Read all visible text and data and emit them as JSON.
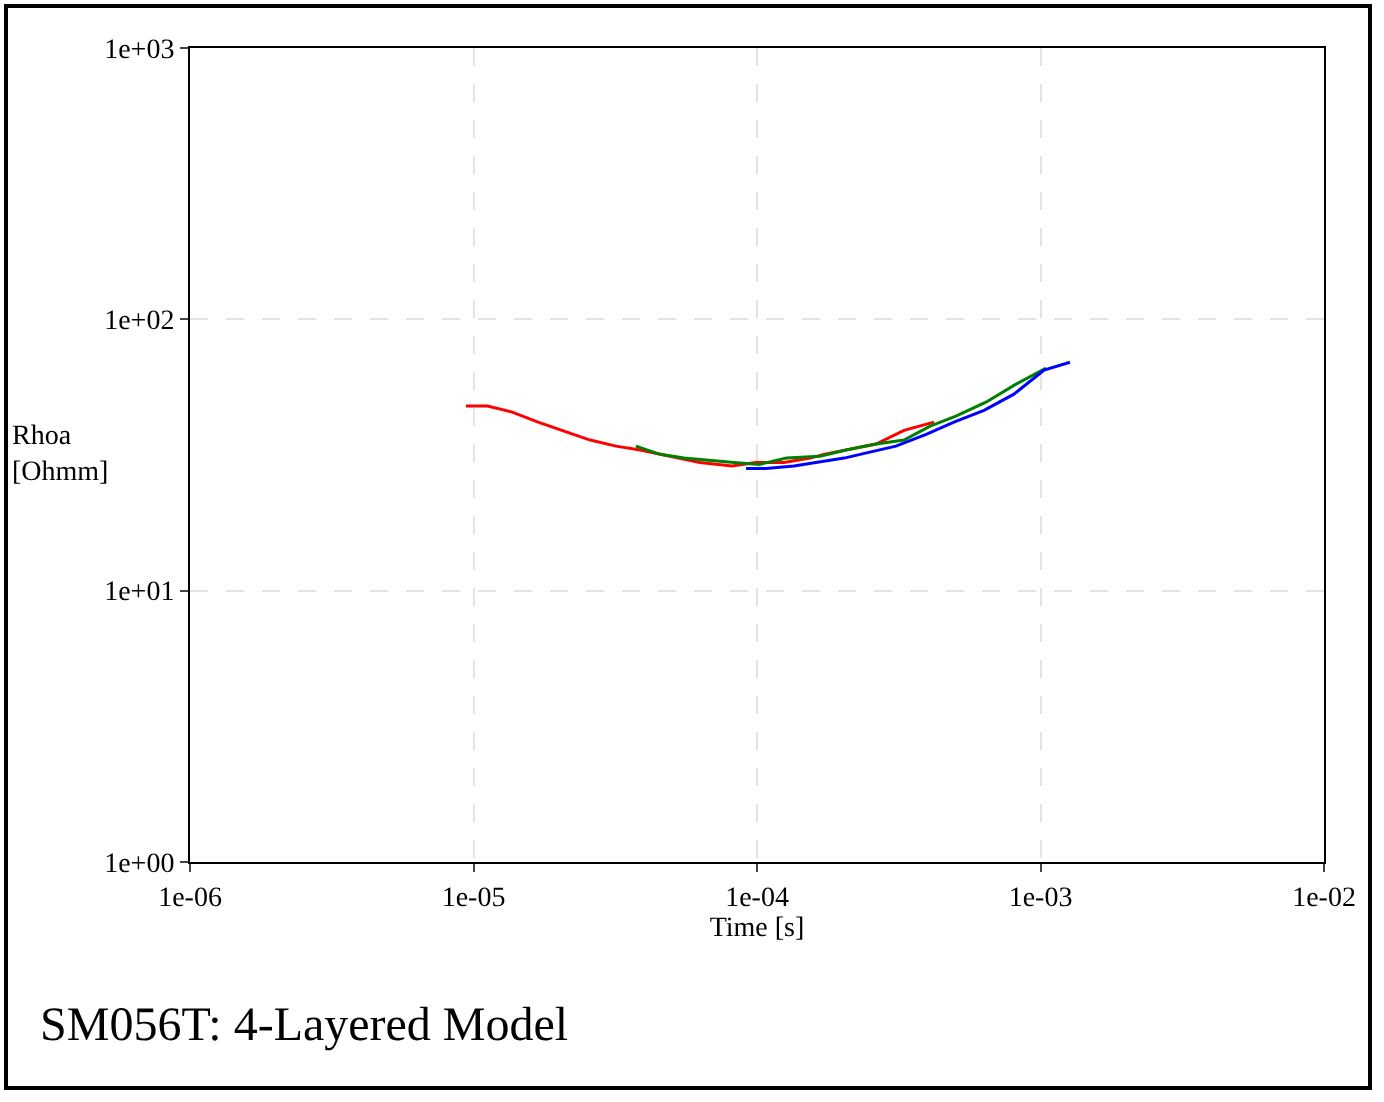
{
  "chart_data": {
    "type": "line",
    "title": "SM056T: 4-Layered Model",
    "xlabel": "Time [s]",
    "ylabel": "Rhoa\n[Ohmm]",
    "log": "xy",
    "grid": true,
    "line_style": "solid",
    "xlim": [
      1e-06,
      0.01
    ],
    "ylim": [
      1,
      1000
    ],
    "xticks": [
      {
        "value": 1e-06,
        "label": "1e-06"
      },
      {
        "value": 1e-05,
        "label": "1e-05"
      },
      {
        "value": 0.0001,
        "label": "1e-04"
      },
      {
        "value": 0.001,
        "label": "1e-03"
      },
      {
        "value": 0.01,
        "label": "1e-02"
      }
    ],
    "yticks": [
      {
        "value": 1,
        "label": "1e+00"
      },
      {
        "value": 10,
        "label": "1e+01"
      },
      {
        "value": 100,
        "label": "1e+02"
      },
      {
        "value": 1000,
        "label": "1e+03"
      }
    ],
    "series": [
      {
        "color": "#ff0000",
        "x": [
          9.4e-06,
          1.12e-05,
          1.37e-05,
          1.69e-05,
          2.05e-05,
          2.58e-05,
          3.18e-05,
          3.87e-05,
          4.93e-05,
          6.29e-05,
          8.16e-05,
          9.92e-05,
          0.0001245,
          0.000154,
          0.000172,
          0.000263,
          0.00033,
          0.000421
        ],
        "values": [
          47.9,
          47.9,
          45.5,
          41.8,
          39.0,
          35.9,
          34.1,
          33.0,
          31.3,
          29.7,
          28.8,
          29.7,
          29.7,
          30.8,
          31.8,
          34.7,
          39.0,
          41.8
        ]
      },
      {
        "color": "#008000",
        "x": [
          3.74e-05,
          4.55e-05,
          5.53e-05,
          6.61e-05,
          8.3e-05,
          0.000102,
          0.000127,
          0.000167,
          0.000206,
          0.000263,
          0.00033,
          0.000408,
          0.000503,
          0.000642,
          0.00082,
          0.001046
        ],
        "values": [
          34.1,
          31.8,
          30.8,
          30.3,
          29.7,
          29.2,
          30.8,
          31.3,
          33.0,
          34.7,
          35.9,
          40.4,
          44.0,
          49.5,
          57.7,
          66.1
        ]
      },
      {
        "color": "#0000ff",
        "x": [
          9.15e-05,
          0.0001076,
          0.000135,
          0.000203,
          0.00025,
          0.000309,
          0.000395,
          0.000495,
          0.000632,
          0.000806,
          0.00103,
          0.00127
        ],
        "values": [
          28.2,
          28.2,
          28.8,
          30.8,
          32.4,
          34.1,
          37.7,
          41.8,
          46.2,
          53.0,
          65.0,
          69.5
        ]
      }
    ]
  }
}
